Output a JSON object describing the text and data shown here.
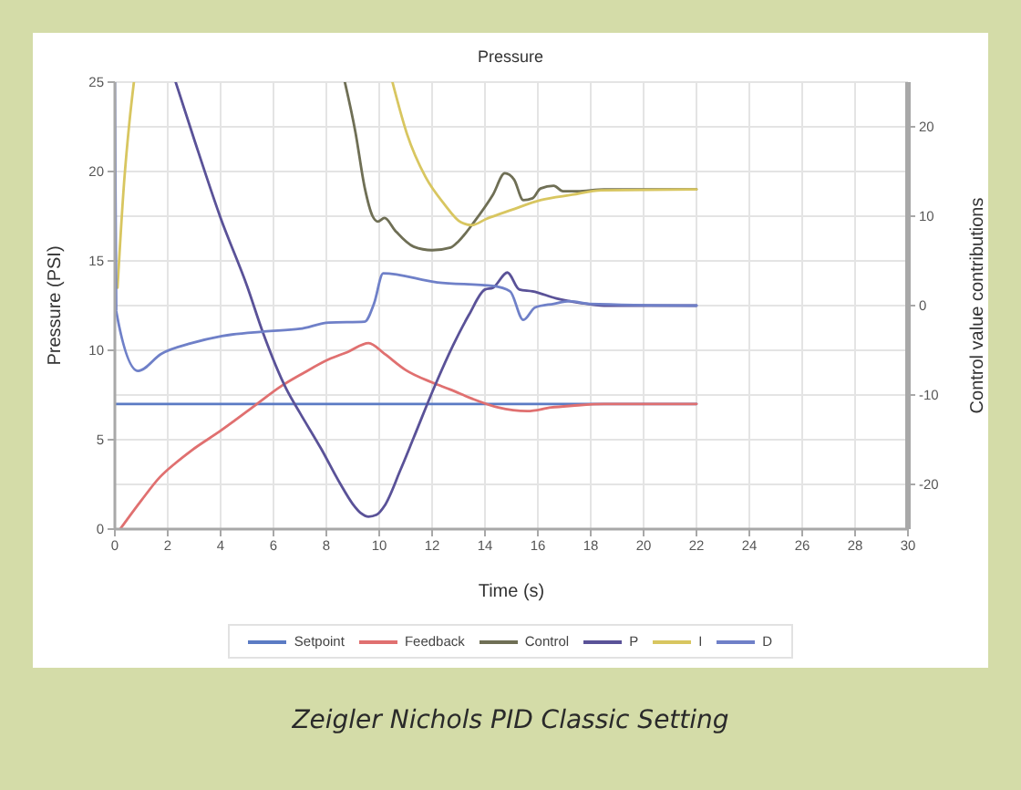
{
  "chart_data": {
    "type": "line",
    "title": "Pressure",
    "xlabel": "Time (s)",
    "ylabel": "Pressure (PSI)",
    "y2label": "Control value contributions",
    "annotations": [
      "Zeigler Nichols PID Classic Setting"
    ],
    "xlim": [
      0,
      30
    ],
    "xticks": [
      0,
      2,
      4,
      6,
      8,
      10,
      12,
      14,
      16,
      18,
      20,
      22,
      24,
      26,
      28,
      30
    ],
    "ylim": [
      0,
      25
    ],
    "yticks": [
      0,
      5,
      10,
      15,
      20,
      25
    ],
    "y2lim": [
      -25,
      25
    ],
    "y2ticks": [
      -20,
      -10,
      0,
      10,
      20
    ],
    "grid": true,
    "legend": "bottom",
    "series": [
      {
        "name": "Setpoint",
        "color": "#5b7bc4",
        "x": [
          0,
          22
        ],
        "values": [
          7,
          7
        ]
      },
      {
        "name": "Feedback",
        "color": "#e07070",
        "x": [
          0.2,
          1.0,
          1.7,
          2.3,
          2.9,
          4.0,
          5.2,
          6.3,
          7.1,
          8.1,
          8.8,
          9.6,
          10.2,
          11.0,
          12.0,
          12.7,
          13.5,
          14.5,
          15.6,
          16.5,
          17.3,
          18.5,
          22
        ],
        "values": [
          0,
          1.6,
          2.9,
          3.7,
          4.4,
          5.5,
          6.8,
          8.0,
          8.7,
          9.5,
          9.9,
          10.4,
          9.8,
          8.9,
          8.2,
          7.8,
          7.3,
          6.8,
          6.6,
          6.8,
          6.9,
          7.0,
          7.0
        ]
      },
      {
        "name": "Control",
        "color": "#6f6f55",
        "axis": "y2",
        "x": [
          8.7,
          9.1,
          9.45,
          9.75,
          9.95,
          10.2,
          10.6,
          11.3,
          12.0,
          12.7,
          13.0,
          13.6,
          14.3,
          14.75,
          15.1,
          15.45,
          15.8,
          16.1,
          16.6,
          16.95,
          17.5,
          18.5,
          22
        ],
        "values": [
          25,
          19.4,
          13.2,
          10.0,
          9.4,
          9.8,
          8.4,
          6.6,
          6.2,
          6.5,
          7.2,
          9.4,
          12.4,
          14.8,
          14.1,
          11.8,
          12.0,
          13.1,
          13.4,
          12.8,
          12.8,
          13.0,
          13.0
        ]
      },
      {
        "name": "P",
        "color": "#5a5298",
        "axis": "y2",
        "x": [
          2.3,
          3.0,
          4.0,
          5.0,
          5.6,
          6.5,
          7.0,
          7.8,
          8.5,
          9.0,
          9.3,
          9.6,
          9.9,
          10.2,
          10.8,
          11.3,
          12.1,
          12.8,
          13.4,
          14.0,
          14.3,
          14.85,
          15.3,
          15.8,
          16.7,
          17.6,
          18.5,
          22
        ],
        "values": [
          25,
          18.6,
          9.8,
          2.2,
          -3.0,
          -9.4,
          -12.0,
          -16.0,
          -19.8,
          -22.2,
          -23.2,
          -23.6,
          -23.4,
          -22.4,
          -18.4,
          -14.8,
          -9.0,
          -4.4,
          -1.0,
          1.8,
          2.0,
          3.7,
          1.8,
          1.6,
          0.8,
          0.3,
          0,
          0
        ]
      },
      {
        "name": "I",
        "color": "#d8c660",
        "axis": "y2",
        "x": [
          0.1,
          0.35,
          0.55,
          0.72,
          5,
          10.5,
          11.05,
          11.75,
          12.45,
          13.1,
          13.5,
          14.05,
          15.0,
          16.1,
          17.3,
          18.4,
          22
        ],
        "values": [
          2.0,
          13.8,
          20.5,
          25,
          null,
          25,
          19.2,
          14.4,
          11.4,
          9.3,
          9.0,
          9.7,
          10.7,
          11.8,
          12.4,
          12.9,
          13.0
        ]
      },
      {
        "name": "D",
        "color": "#6f80c8",
        "axis": "y2",
        "x": [
          0,
          0.05,
          0.88,
          1.75,
          2.9,
          4.05,
          5.65,
          7.0,
          8.1,
          9.45,
          9.8,
          10.15,
          12.2,
          14.3,
          14.95,
          15.45,
          15.9,
          16.6,
          17.2,
          17.95,
          22
        ],
        "values": [
          25,
          -0.6,
          -7.3,
          -5.4,
          -4.2,
          -3.4,
          -2.9,
          -2.6,
          -1.9,
          -1.8,
          0.2,
          3.6,
          2.6,
          2.2,
          1.6,
          -1.6,
          -0.2,
          0.2,
          0.5,
          0.2,
          0
        ]
      }
    ]
  }
}
